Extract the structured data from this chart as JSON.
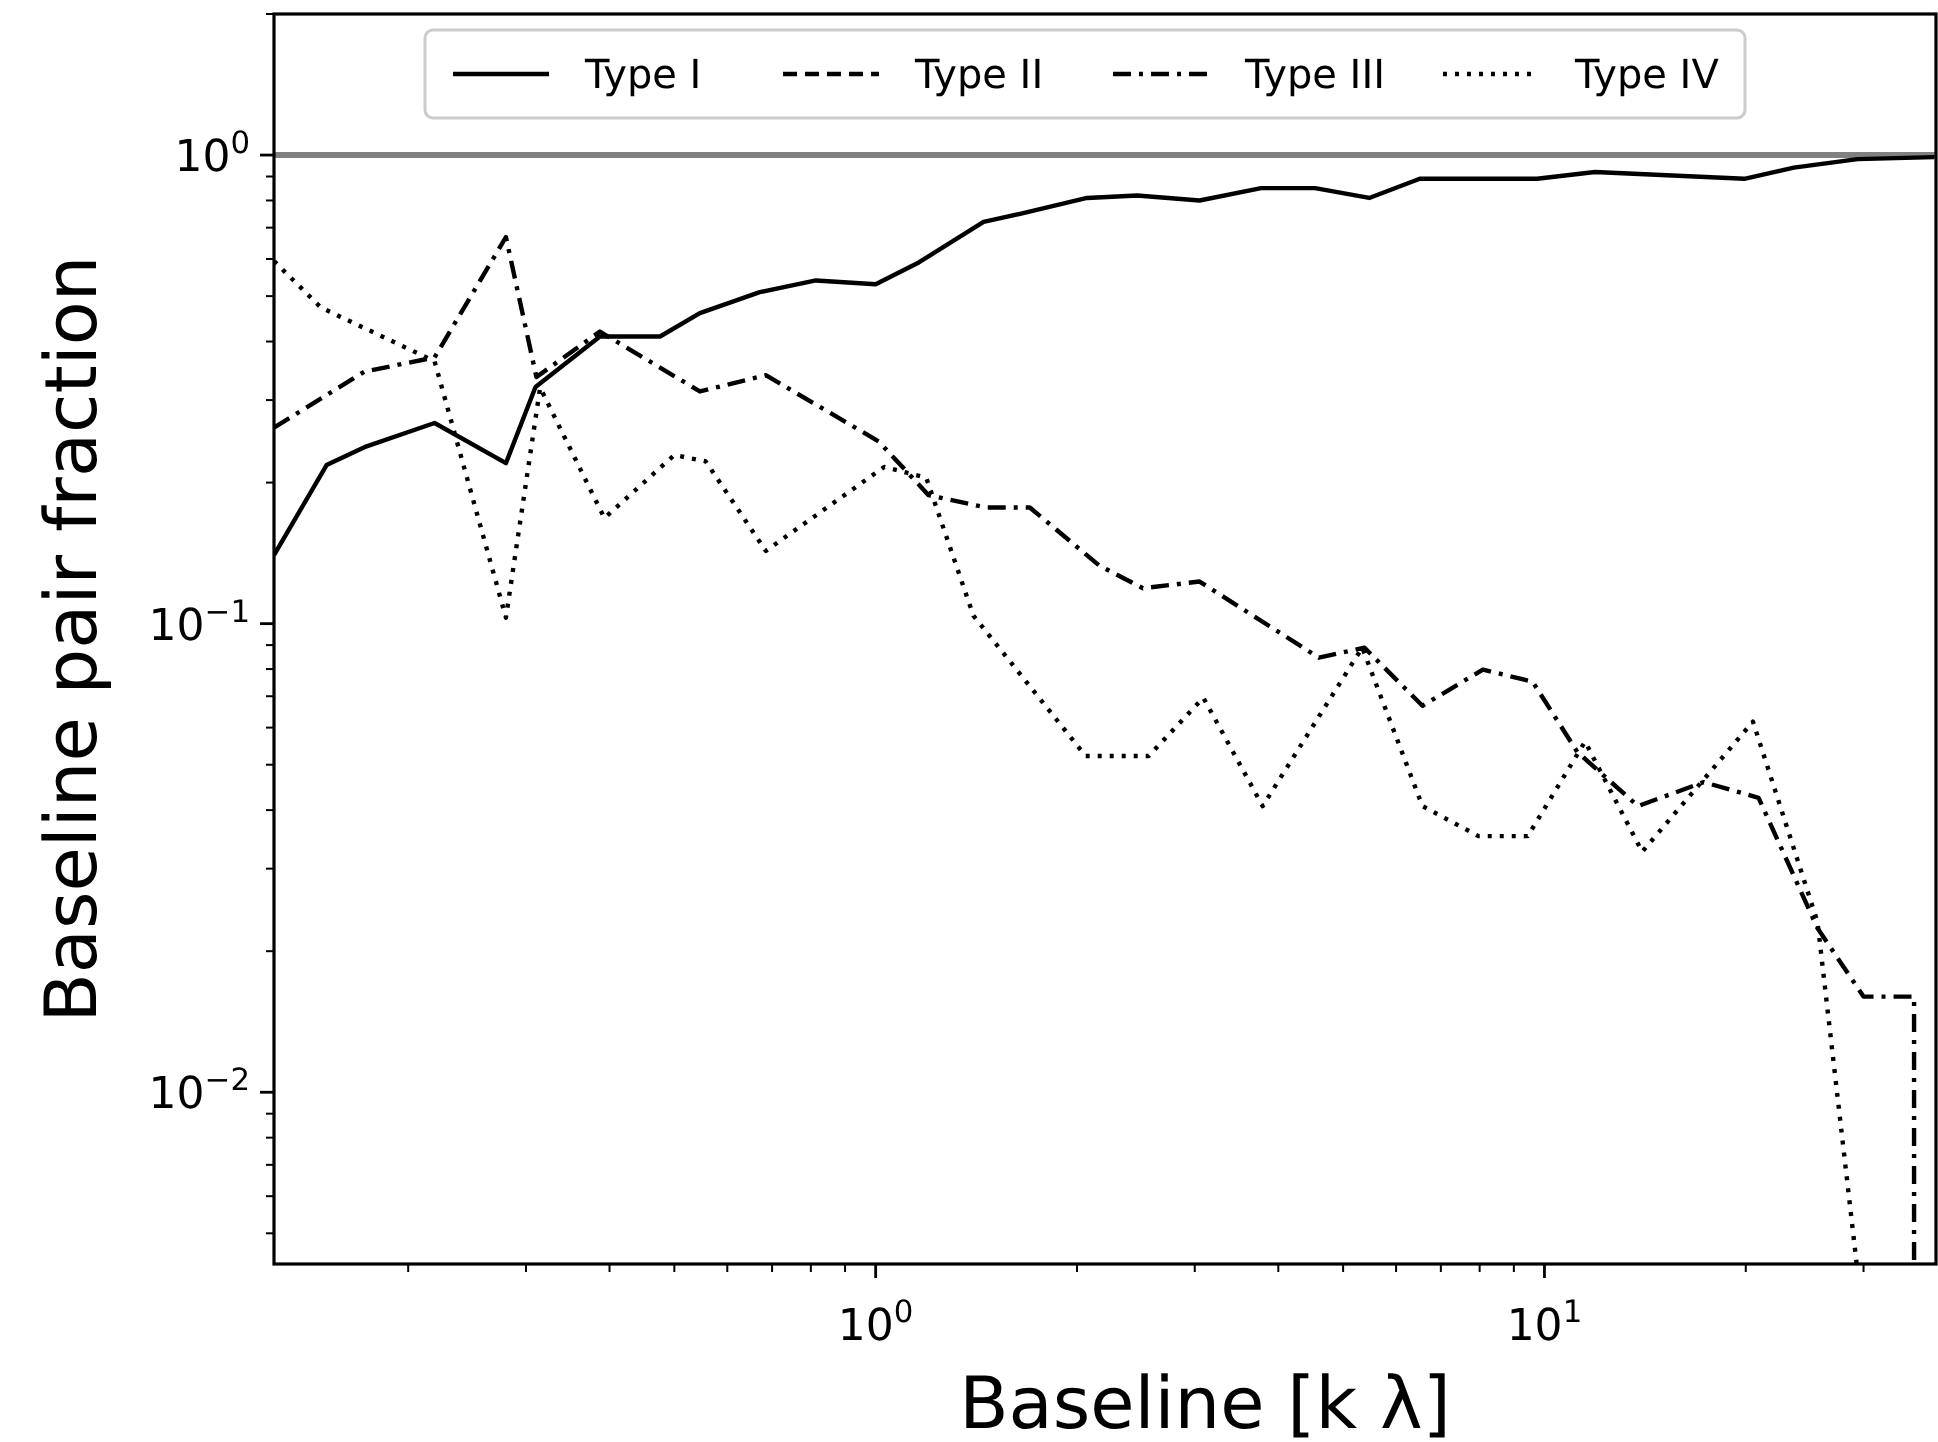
{
  "chart_data": {
    "type": "line",
    "xlabel": "Baseline [k λ]",
    "ylabel": "Baseline pair fraction",
    "log": "xy",
    "legend": "top",
    "grid": false,
    "xlim": [
      0.126,
      38.5
    ],
    "ylim": [
      0.0043,
      2
    ],
    "xticks": [
      {
        "value": 0.2,
        "label": null
      },
      {
        "value": 0.3,
        "label": null
      },
      {
        "value": 0.4,
        "label": null
      },
      {
        "value": 0.5,
        "label": null
      },
      {
        "value": 0.6,
        "label": null
      },
      {
        "value": 0.7,
        "label": null
      },
      {
        "value": 0.8,
        "label": null
      },
      {
        "value": 0.9,
        "label": null
      },
      {
        "value": 1,
        "label": "10$^{0}$"
      },
      {
        "value": 2,
        "label": null
      },
      {
        "value": 3,
        "label": null
      },
      {
        "value": 4,
        "label": null
      },
      {
        "value": 5,
        "label": null
      },
      {
        "value": 6,
        "label": null
      },
      {
        "value": 7,
        "label": null
      },
      {
        "value": 8,
        "label": null
      },
      {
        "value": 9,
        "label": null
      },
      {
        "value": 10,
        "label": "10$^{1}$"
      },
      {
        "value": 20,
        "label": null
      },
      {
        "value": 30,
        "label": null
      }
    ],
    "yticks": [
      {
        "value": 0.005,
        "label": null
      },
      {
        "value": 0.006,
        "label": null
      },
      {
        "value": 0.007,
        "label": null
      },
      {
        "value": 0.008,
        "label": null
      },
      {
        "value": 0.009,
        "label": null
      },
      {
        "value": 0.01,
        "label": "10$^{−2}$"
      },
      {
        "value": 0.02,
        "label": null
      },
      {
        "value": 0.03,
        "label": null
      },
      {
        "value": 0.04,
        "label": null
      },
      {
        "value": 0.05,
        "label": null
      },
      {
        "value": 0.06,
        "label": null
      },
      {
        "value": 0.07,
        "label": null
      },
      {
        "value": 0.08,
        "label": null
      },
      {
        "value": 0.09,
        "label": null
      },
      {
        "value": 0.1,
        "label": "10$^{−1}$"
      },
      {
        "value": 0.2,
        "label": null
      },
      {
        "value": 0.3,
        "label": null
      },
      {
        "value": 0.4,
        "label": null
      },
      {
        "value": 0.5,
        "label": null
      },
      {
        "value": 0.6,
        "label": null
      },
      {
        "value": 0.7,
        "label": null
      },
      {
        "value": 0.8,
        "label": null
      },
      {
        "value": 0.9,
        "label": null
      },
      {
        "value": 1,
        "label": "10$^{0}$"
      },
      {
        "value": 2,
        "label": null
      }
    ],
    "ref_lines": [
      {
        "axis": "y",
        "value": 1,
        "color": "#808080"
      }
    ],
    "series": [
      {
        "name": "Type I",
        "color": "#000000",
        "line_style": "solid",
        "x": [
          0.126,
          0.151,
          0.172,
          0.219,
          0.28,
          0.31,
          0.387,
          0.476,
          0.546,
          0.671,
          0.814,
          1.0,
          1.16,
          1.45,
          1.65,
          2.07,
          2.46,
          3.05,
          3.77,
          4.54,
          5.47,
          6.51,
          9.75,
          11.9,
          19.9,
          23.6,
          29.4,
          38.3
        ],
        "values": [
          0.14,
          0.218,
          0.238,
          0.268,
          0.22,
          0.32,
          0.41,
          0.41,
          0.46,
          0.51,
          0.54,
          0.53,
          0.59,
          0.72,
          0.75,
          0.81,
          0.82,
          0.8,
          0.85,
          0.85,
          0.81,
          0.89,
          0.89,
          0.92,
          0.89,
          0.94,
          0.98,
          0.99
        ]
      },
      {
        "name": "Type II",
        "color": "#000000",
        "line_style": "dashed"
      },
      {
        "name": "Type III",
        "color": "#000000",
        "line_style": "dashdot",
        "x": [
          0.126,
          0.172,
          0.219,
          0.28,
          0.311,
          0.387,
          0.546,
          0.685,
          1.01,
          1.2,
          1.46,
          1.7,
          2.16,
          2.51,
          3.05,
          4.6,
          5.38,
          6.57,
          8.09,
          9.6,
          11.2,
          13.8,
          17.3,
          20.9,
          25.6,
          30.0,
          35.7,
          35.7
        ],
        "values": [
          0.262,
          0.345,
          0.37,
          0.668,
          0.336,
          0.42,
          0.313,
          0.339,
          0.245,
          0.188,
          0.177,
          0.177,
          0.133,
          0.119,
          0.123,
          0.0846,
          0.0889,
          0.0668,
          0.0798,
          0.0752,
          0.0532,
          0.0408,
          0.0459,
          0.0425,
          0.0224,
          0.016,
          0.016,
          0.0043
        ]
      },
      {
        "name": "Type IV",
        "color": "#000000",
        "line_style": "dotted",
        "x": [
          0.126,
          0.148,
          0.219,
          0.28,
          0.315,
          0.393,
          0.5,
          0.557,
          0.685,
          1.03,
          1.19,
          1.4,
          2.06,
          2.56,
          3.09,
          3.79,
          5.34,
          6.57,
          7.97,
          9.44,
          11.5,
          14.0,
          20.5,
          25.6,
          29.3
        ],
        "values": [
          0.594,
          0.473,
          0.363,
          0.103,
          0.319,
          0.168,
          0.229,
          0.222,
          0.143,
          0.216,
          0.205,
          0.104,
          0.0522,
          0.0522,
          0.0695,
          0.0408,
          0.0889,
          0.0408,
          0.0352,
          0.0352,
          0.056,
          0.0326,
          0.0618,
          0.0231,
          0.0043
        ]
      }
    ]
  }
}
